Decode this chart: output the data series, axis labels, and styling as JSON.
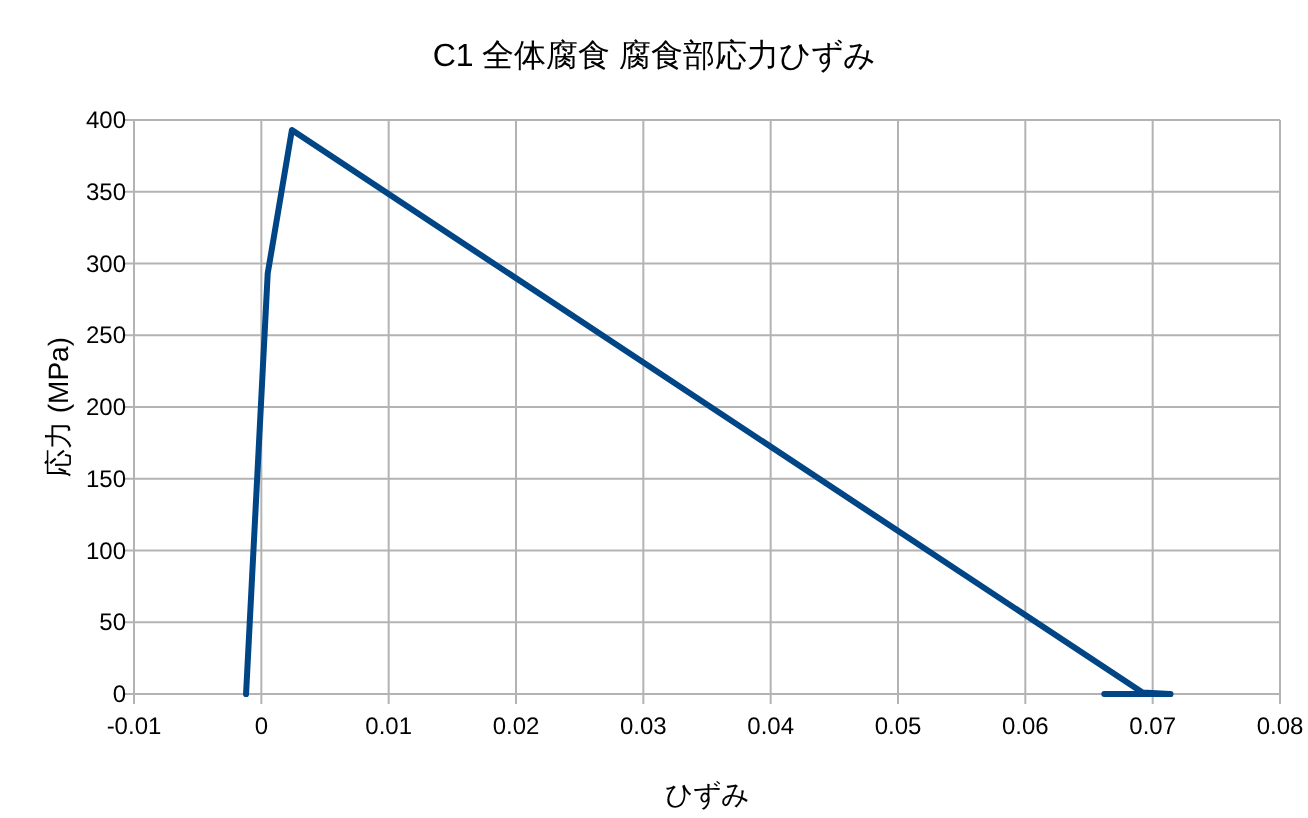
{
  "chart_data": {
    "type": "line",
    "title": "C1 全体腐食 腐食部応力ひずみ",
    "xlabel": "ひずみ",
    "ylabel": "応力 (MPa)",
    "x": [
      -0.0012,
      0.0005,
      0.0024,
      0.0692,
      0.0714,
      0.0662
    ],
    "series": [
      {
        "color": "#004586",
        "values": [
          0,
          293,
          393,
          1,
          0,
          0
        ]
      }
    ],
    "xlim": [
      -0.01,
      0.08
    ],
    "xticks": [
      -0.01,
      0,
      0.01,
      0.02,
      0.03,
      0.04,
      0.05,
      0.06,
      0.07,
      0.08
    ],
    "ylim": [
      0,
      400
    ],
    "yticks": [
      0,
      50,
      100,
      150,
      200,
      250,
      300,
      350,
      400
    ],
    "grid": true,
    "marker": "none",
    "line_style": "solid"
  }
}
